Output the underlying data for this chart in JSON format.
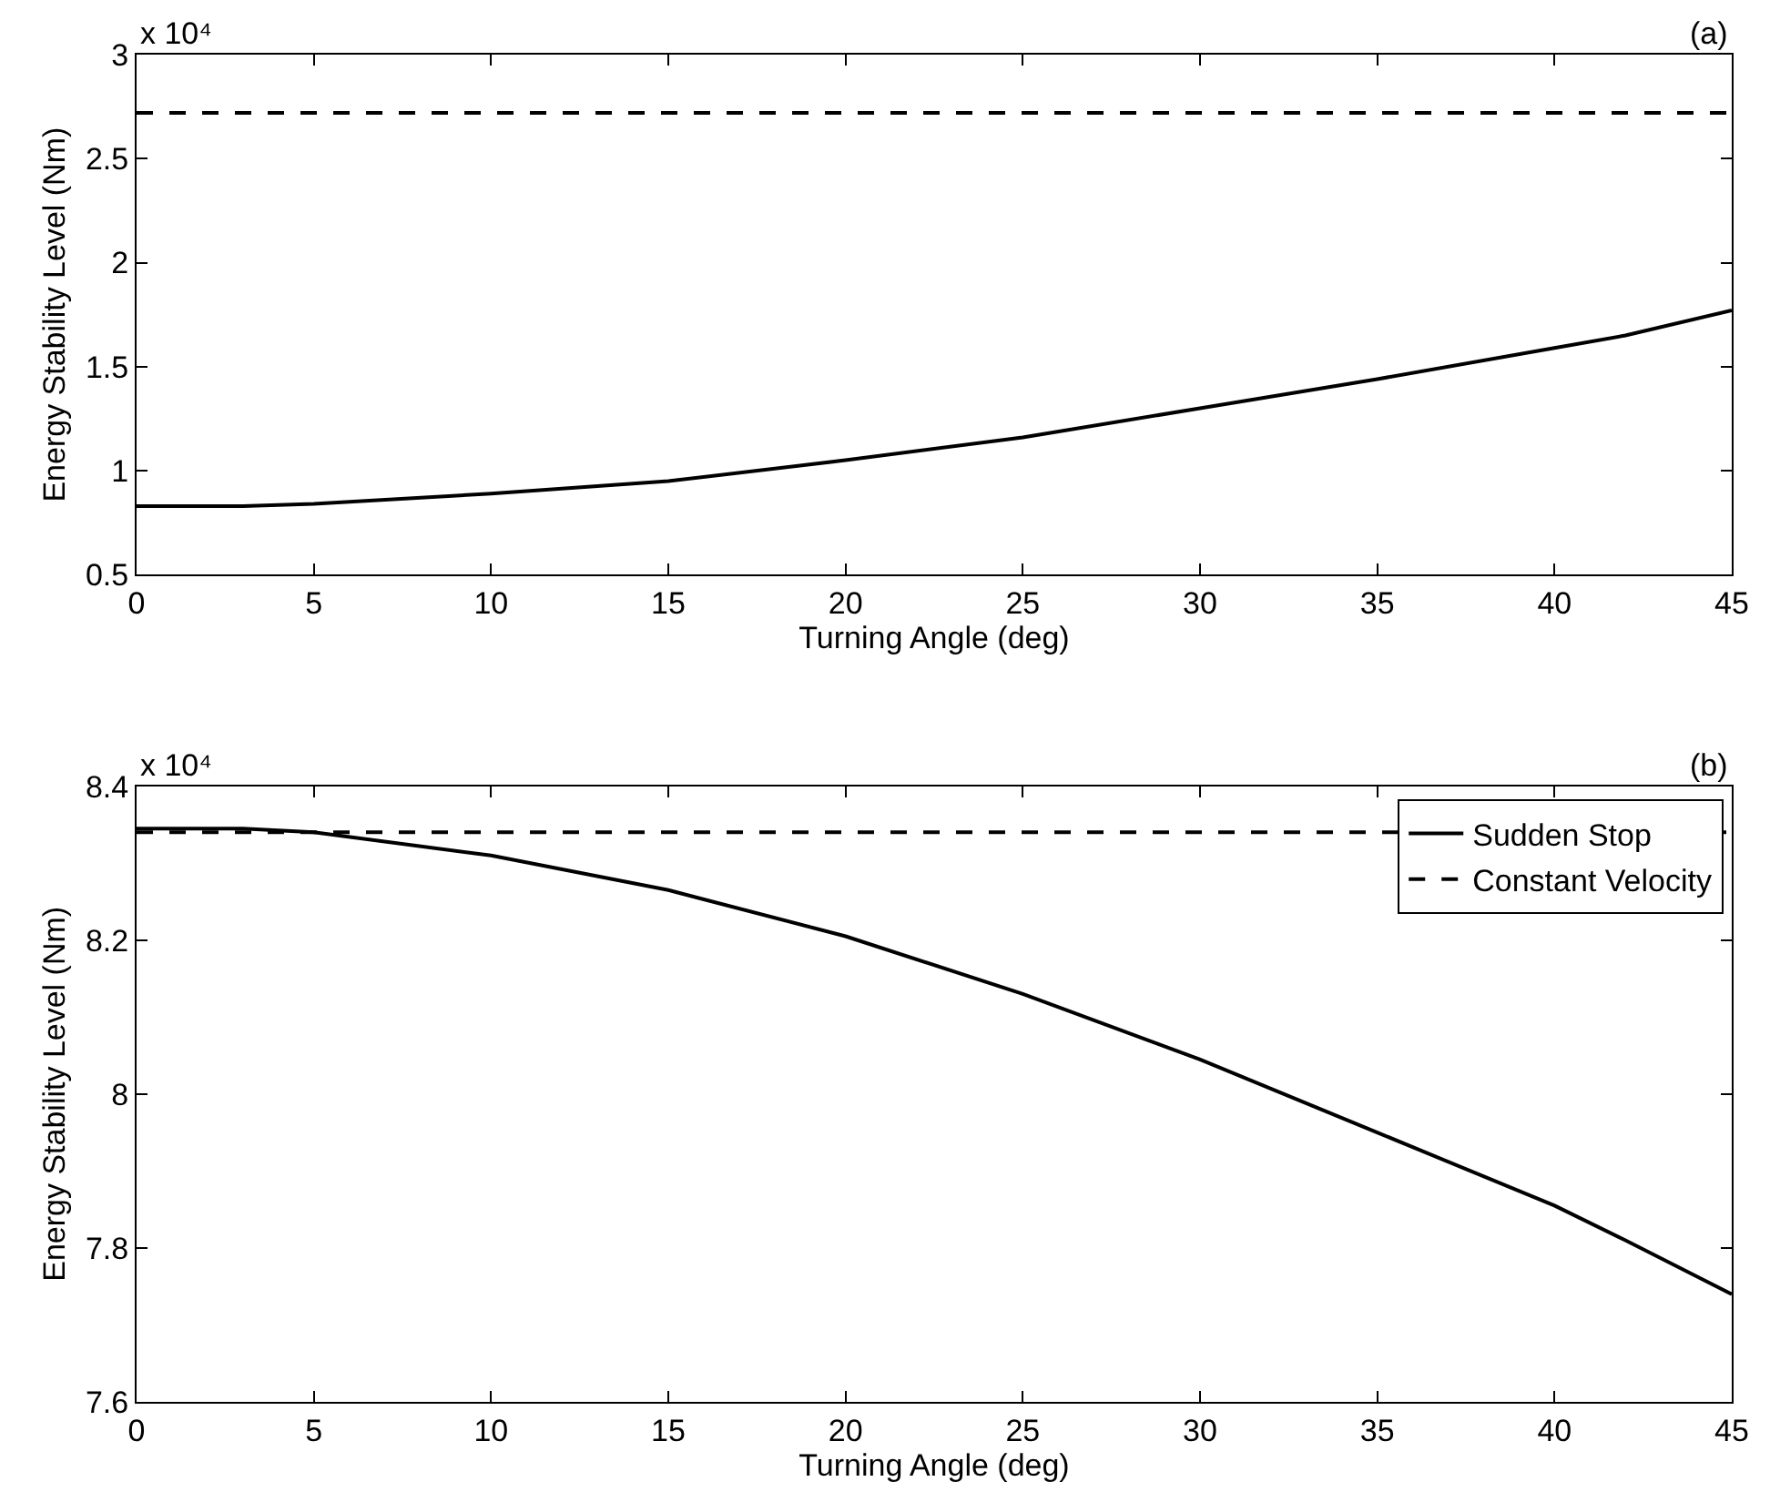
{
  "chart_data": [
    {
      "type": "line",
      "xlabel": "Turning Angle (deg)",
      "ylabel": "Energy Stability Level (Nm)",
      "annotations": [
        "x 10⁴",
        "(a)"
      ],
      "xlim": [
        0,
        45
      ],
      "xticks": [
        0,
        5,
        10,
        15,
        20,
        25,
        30,
        35,
        40,
        45
      ],
      "ylim": [
        0.5,
        3
      ],
      "yticks": [
        0.5,
        1,
        1.5,
        2,
        2.5,
        3
      ],
      "legend": false,
      "series": [
        {
          "color": "#000000",
          "line_style": "solid",
          "x": [
            0,
            3,
            5,
            10,
            15,
            20,
            25,
            30,
            35,
            40,
            42,
            45
          ],
          "values": [
            0.83,
            0.83,
            0.84,
            0.89,
            0.95,
            1.05,
            1.16,
            1.3,
            1.44,
            1.59,
            1.65,
            1.77
          ]
        },
        {
          "color": "#000000",
          "line_style": "dashed",
          "x": [
            0,
            45
          ],
          "values": [
            2.72,
            2.72
          ]
        }
      ]
    },
    {
      "type": "line",
      "xlabel": "Turning Angle (deg)",
      "ylabel": "Energy Stability Level (Nm)",
      "annotations": [
        "x 10⁴",
        "(b)"
      ],
      "xlim": [
        0,
        45
      ],
      "xticks": [
        0,
        5,
        10,
        15,
        20,
        25,
        30,
        35,
        40,
        45
      ],
      "ylim": [
        7.6,
        8.4
      ],
      "yticks": [
        7.6,
        7.8,
        {
          "value": 8,
          "label": "8"
        },
        8.2,
        8.4
      ],
      "legend": "top right",
      "series": [
        {
          "name": "Sudden Stop",
          "color": "#000000",
          "line_style": "solid",
          "x": [
            0,
            3,
            5,
            10,
            15,
            20,
            25,
            30,
            35,
            40,
            42,
            45
          ],
          "values": [
            8.345,
            8.345,
            8.34,
            8.31,
            8.265,
            8.205,
            8.13,
            8.045,
            7.95,
            7.855,
            7.81,
            7.74
          ]
        },
        {
          "name": "Constant Velocity",
          "color": "#000000",
          "line_style": "dashed",
          "x": [
            0,
            45
          ],
          "values": [
            8.34,
            8.34
          ]
        }
      ]
    }
  ]
}
